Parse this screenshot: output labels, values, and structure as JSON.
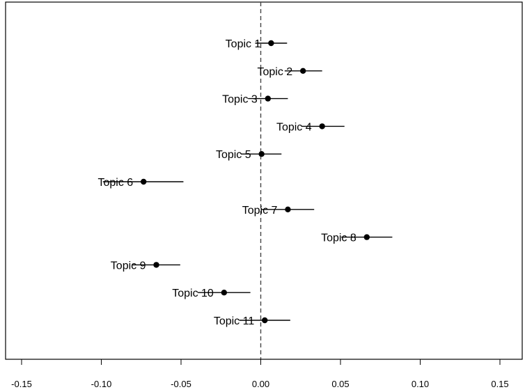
{
  "chart_data": {
    "type": "forest",
    "title": "",
    "xlabel": "",
    "ylabel": "",
    "xlim": [
      -0.165,
      0.163
    ],
    "xticks": [
      -0.15,
      -0.1,
      -0.05,
      0.0,
      0.05,
      0.1,
      0.15
    ],
    "xtick_labels": [
      "-0.15",
      "-0.10",
      "-0.05",
      "0.00",
      "0.05",
      "0.10",
      "0.15"
    ],
    "reference_line": 0,
    "grid": false,
    "points": [
      {
        "label": "Topic 1",
        "estimate": 0.0065,
        "lower": -0.0035,
        "upper": 0.0165
      },
      {
        "label": "Topic 2",
        "estimate": 0.0265,
        "lower": 0.015,
        "upper": 0.0385
      },
      {
        "label": "Topic 3",
        "estimate": 0.0045,
        "lower": -0.008,
        "upper": 0.017
      },
      {
        "label": "Topic 4",
        "estimate": 0.0385,
        "lower": 0.0255,
        "upper": 0.0525
      },
      {
        "label": "Topic 5",
        "estimate": 0.0005,
        "lower": -0.0125,
        "upper": 0.013
      },
      {
        "label": "Topic 6",
        "estimate": -0.0735,
        "lower": -0.099,
        "upper": -0.0485
      },
      {
        "label": "Topic 7",
        "estimate": 0.017,
        "lower": 0.0005,
        "upper": 0.0335
      },
      {
        "label": "Topic 8",
        "estimate": 0.0665,
        "lower": 0.0505,
        "upper": 0.0825
      },
      {
        "label": "Topic 9",
        "estimate": -0.0655,
        "lower": -0.0805,
        "upper": -0.0505
      },
      {
        "label": "Topic 10",
        "estimate": -0.023,
        "lower": -0.0395,
        "upper": -0.0065
      },
      {
        "label": "Topic 11",
        "estimate": 0.0025,
        "lower": -0.0135,
        "upper": 0.0185
      }
    ]
  }
}
